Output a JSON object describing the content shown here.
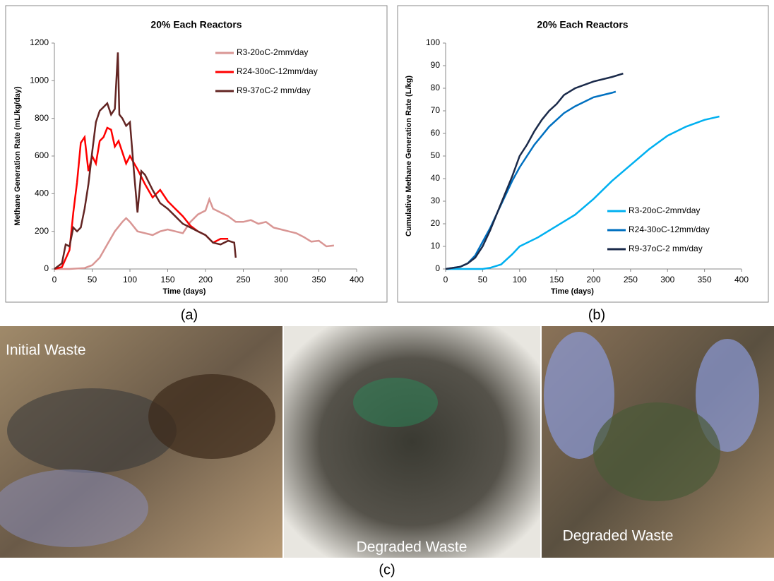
{
  "chart_data": [
    {
      "type": "line",
      "title": "20% Each Reactors",
      "x_label": "Time (days)",
      "y_label": "Methane Generation Rate (mL/kg/day)",
      "xlim": [
        0,
        400
      ],
      "xticks": [
        0,
        50,
        100,
        150,
        200,
        250,
        300,
        350,
        400
      ],
      "ylim": [
        0,
        1200
      ],
      "yticks": [
        0,
        200,
        400,
        600,
        800,
        1000,
        1200
      ],
      "grid": false,
      "legend": "upper right",
      "series": [
        {
          "name": "R3-20oC-2mm/day",
          "color": "#d99694",
          "x": [
            0,
            20,
            40,
            50,
            60,
            70,
            80,
            90,
            95,
            100,
            110,
            120,
            130,
            140,
            150,
            160,
            170,
            180,
            190,
            200,
            205,
            210,
            220,
            230,
            240,
            250,
            260,
            270,
            280,
            290,
            300,
            310,
            320,
            330,
            340,
            350,
            360,
            370
          ],
          "values": [
            0,
            0,
            5,
            20,
            60,
            130,
            200,
            250,
            270,
            250,
            200,
            190,
            180,
            200,
            210,
            200,
            190,
            250,
            290,
            310,
            370,
            320,
            300,
            280,
            250,
            250,
            260,
            240,
            250,
            220,
            210,
            200,
            190,
            170,
            145,
            150,
            120,
            125
          ]
        },
        {
          "name": "R24-30oC-12mm/day",
          "color": "#ff0000",
          "x": [
            0,
            10,
            20,
            25,
            30,
            35,
            40,
            45,
            50,
            55,
            60,
            65,
            70,
            75,
            80,
            85,
            90,
            95,
            100,
            110,
            120,
            130,
            140,
            150,
            160,
            170,
            180,
            190,
            200,
            210,
            220,
            230
          ],
          "values": [
            0,
            10,
            100,
            300,
            460,
            670,
            700,
            520,
            600,
            560,
            680,
            700,
            750,
            740,
            650,
            680,
            620,
            560,
            600,
            530,
            450,
            380,
            420,
            360,
            320,
            280,
            230,
            200,
            180,
            140,
            160,
            160
          ]
        },
        {
          "name": "R9-37oC-2 mm/day",
          "color": "#632523",
          "x": [
            0,
            10,
            15,
            20,
            25,
            30,
            35,
            40,
            45,
            50,
            55,
            60,
            65,
            70,
            75,
            80,
            84,
            86,
            90,
            95,
            100,
            105,
            110,
            115,
            120,
            130,
            140,
            150,
            160,
            170,
            180,
            190,
            200,
            210,
            220,
            230,
            238,
            240
          ],
          "values": [
            0,
            30,
            130,
            120,
            220,
            200,
            220,
            320,
            450,
            620,
            780,
            840,
            860,
            880,
            820,
            850,
            1150,
            820,
            800,
            760,
            780,
            530,
            300,
            520,
            500,
            420,
            350,
            320,
            280,
            240,
            220,
            200,
            180,
            140,
            130,
            150,
            140,
            60
          ]
        }
      ]
    },
    {
      "type": "line",
      "title": "20% Each Reactors",
      "x_label": "Time (days)",
      "y_label": "Cumulative Methane Generation Rate (L/kg)",
      "xlim": [
        0,
        400
      ],
      "xticks": [
        0,
        50,
        100,
        150,
        200,
        250,
        300,
        350,
        400
      ],
      "ylim": [
        0,
        100
      ],
      "yticks": [
        0,
        10,
        20,
        30,
        40,
        50,
        60,
        70,
        80,
        90,
        100
      ],
      "grid": false,
      "legend": "lower right",
      "series": [
        {
          "name": "R3-20oC-2mm/day",
          "color": "#00b0f0",
          "x": [
            0,
            25,
            50,
            60,
            75,
            80,
            90,
            100,
            125,
            150,
            175,
            200,
            225,
            250,
            275,
            300,
            325,
            350,
            370
          ],
          "values": [
            0,
            0,
            0,
            0.5,
            2,
            3.5,
            6.5,
            10,
            14,
            19,
            24,
            31,
            39,
            46,
            53,
            59,
            63,
            66,
            67.5
          ]
        },
        {
          "name": "R24-30oC-12mm/day",
          "color": "#0070c0",
          "x": [
            0,
            20,
            30,
            40,
            50,
            60,
            70,
            80,
            90,
            100,
            110,
            120,
            130,
            140,
            150,
            160,
            175,
            200,
            225,
            230
          ],
          "values": [
            0,
            1,
            2.5,
            6,
            12,
            18,
            25,
            32,
            39,
            45,
            50,
            55,
            59,
            63,
            66,
            69,
            72,
            76,
            78,
            78.5
          ]
        },
        {
          "name": "R9-37oC-2 mm/day",
          "color": "#1a2a4a",
          "x": [
            0,
            20,
            30,
            40,
            50,
            60,
            70,
            80,
            90,
            100,
            110,
            120,
            130,
            140,
            150,
            160,
            175,
            200,
            225,
            240
          ],
          "values": [
            0,
            1,
            2.5,
            5,
            10,
            17,
            25,
            33,
            41,
            50,
            55,
            61,
            66,
            70,
            73,
            77,
            80,
            83,
            85,
            86.5
          ]
        }
      ]
    }
  ],
  "panel_labels": [
    "(a)",
    "(b)",
    "(c)"
  ],
  "photos": [
    {
      "caption": "Initial Waste"
    },
    {
      "caption": "Degraded Waste"
    },
    {
      "caption": "Degraded Waste"
    }
  ]
}
